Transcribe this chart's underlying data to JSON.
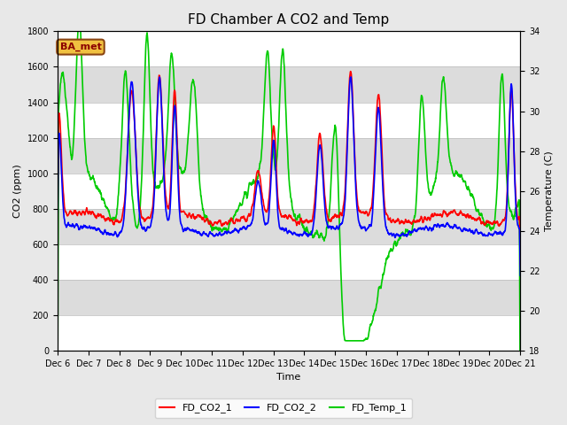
{
  "title": "FD Chamber A CO2 and Temp",
  "xlabel": "Time",
  "ylabel_left": "CO2 (ppm)",
  "ylabel_right": "Temperature (C)",
  "annotation": "BA_met",
  "ylim_left": [
    0,
    1800
  ],
  "ylim_right": [
    18,
    34
  ],
  "yticks_left": [
    0,
    200,
    400,
    600,
    800,
    1000,
    1200,
    1400,
    1600,
    1800
  ],
  "yticks_right": [
    18,
    20,
    22,
    24,
    26,
    28,
    30,
    32,
    34
  ],
  "xtick_labels": [
    "Dec 6",
    "Dec 7",
    "Dec 8",
    "Dec 9",
    "Dec 10",
    "Dec 11",
    "Dec 12",
    "Dec 13",
    "Dec 14",
    "Dec 15",
    "Dec 16",
    "Dec 17",
    "Dec 18",
    "Dec 19",
    "Dec 20",
    "Dec 21"
  ],
  "n_days": 16,
  "color_co2_1": "red",
  "color_co2_2": "blue",
  "color_temp": "#00cc00",
  "legend_labels": [
    "FD_CO2_1",
    "FD_CO2_2",
    "FD_Temp_1"
  ],
  "fig_bg_color": "#e8e8e8",
  "plot_bg_color": "#ffffff",
  "band_color": "#dcdcdc",
  "title_fontsize": 11,
  "axis_fontsize": 8,
  "tick_fontsize": 7,
  "linewidth": 1.2,
  "band_ranges": [
    [
      200,
      400
    ],
    [
      600,
      800
    ],
    [
      1000,
      1200
    ],
    [
      1400,
      1600
    ]
  ],
  "seed_co2_1": 10,
  "seed_co2_2": 20,
  "seed_temp": 30
}
